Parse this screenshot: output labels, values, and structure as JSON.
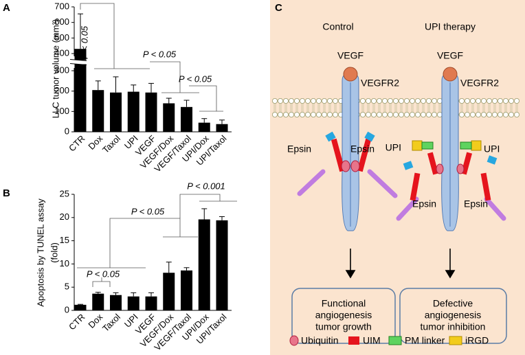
{
  "panels": [
    "A",
    "B",
    "C"
  ],
  "chart_data": [
    {
      "type": "bar",
      "ylabel": "LLC tumor volume (mm³)",
      "categories": [
        "CTR",
        "Dox",
        "Taxol",
        "UPI",
        "VEGF",
        "VEGF/Dox",
        "VEGF/Taxol",
        "UPI/Dox",
        "UPI/Taxol"
      ],
      "values": [
        430,
        205,
        193,
        197,
        193,
        140,
        122,
        45,
        38
      ],
      "errors": [
        225,
        45,
        77,
        33,
        45,
        25,
        33,
        20,
        20
      ],
      "color": "#000000",
      "ylim": [
        0,
        700
      ],
      "ybreak": [
        300,
        400
      ],
      "yticks": [
        0,
        100,
        200,
        300,
        400,
        500,
        600,
        700
      ],
      "annotations": [
        "P < 0.05",
        "P < 0.05",
        "P < 0.05"
      ]
    },
    {
      "type": "bar",
      "ylabel": [
        "Apoptosis by TUNEL assay",
        "(fold)"
      ],
      "categories": [
        "CTR",
        "Dox",
        "Taxol",
        "UPI",
        "VEGF",
        "VEGF/Dox",
        "VEGF/Taxol",
        "UPI/Dox",
        "UPI/Taxol"
      ],
      "values": [
        1.2,
        3.6,
        3.3,
        3.0,
        3.0,
        8.1,
        8.6,
        19.6,
        19.4
      ],
      "errors": [
        0.1,
        0.3,
        0.5,
        0.8,
        0.8,
        2.3,
        0.6,
        2.3,
        0.8
      ],
      "color": "#000000",
      "ylim": [
        0,
        25
      ],
      "yticks": [
        0,
        5,
        10,
        15,
        20,
        25
      ],
      "annotations": [
        "P < 0.05",
        "P < 0.05",
        "P < 0.001"
      ]
    }
  ],
  "diagram": {
    "columns": [
      "Control",
      "UPI therapy"
    ],
    "ligand": [
      "VEGF",
      "VEGF"
    ],
    "receptor": [
      "VEGFR2",
      "VEGFR2"
    ],
    "epsin": [
      "Epsin",
      "Epsin",
      "Epsin",
      "Epsin"
    ],
    "upi": [
      "UPI",
      "UPI"
    ],
    "outcomes": [
      [
        "Functional",
        "angiogenesis",
        "tumor growth"
      ],
      [
        "Defective",
        "angiogenesis",
        "tumor inhibition"
      ]
    ],
    "legend": [
      "Ubiquitin",
      "UIM",
      "PM linker",
      "iRGD"
    ]
  }
}
